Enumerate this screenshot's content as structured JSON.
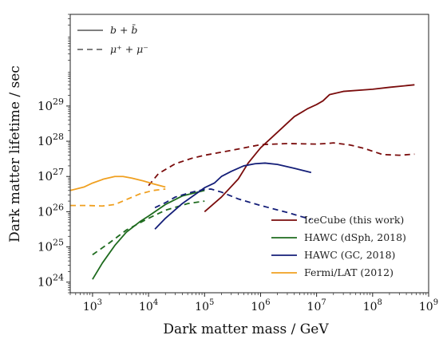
{
  "chart_data": {
    "type": "line",
    "title": "",
    "xlabel": "Dark matter mass / GeV",
    "ylabel": "Dark matter lifetime / sec",
    "x_scale": "log",
    "y_scale": "log",
    "xlim": [
      400,
      1000000000
    ],
    "ylim": [
      500000000000000000000000,
      40000000000000000000000000000000
    ],
    "x_ticks": [
      {
        "value": 1000,
        "base": "10",
        "exp": "3"
      },
      {
        "value": 10000,
        "base": "10",
        "exp": "4"
      },
      {
        "value": 100000,
        "base": "10",
        "exp": "5"
      },
      {
        "value": 1000000,
        "base": "10",
        "exp": "6"
      },
      {
        "value": 10000000,
        "base": "10",
        "exp": "7"
      },
      {
        "value": 100000000,
        "base": "10",
        "exp": "8"
      },
      {
        "value": 1000000000,
        "base": "10",
        "exp": "9"
      }
    ],
    "y_ticks": [
      {
        "value": 1e+24,
        "base": "10",
        "exp": "24"
      },
      {
        "value": 1e+25,
        "base": "10",
        "exp": "25"
      },
      {
        "value": 1e+26,
        "base": "10",
        "exp": "26"
      },
      {
        "value": 1e+27,
        "base": "10",
        "exp": "27"
      },
      {
        "value": 1e+28,
        "base": "10",
        "exp": "28"
      },
      {
        "value": 1e+29,
        "base": "10",
        "exp": "29"
      }
    ],
    "grid": false,
    "legend_placement": "bottom-right",
    "style_legend": [
      {
        "style": "solid",
        "label": "b + b̄"
      },
      {
        "style": "dashed",
        "label": "μ⁺ + μ⁻"
      }
    ],
    "series": [
      {
        "name": "IceCube (this work)",
        "color": "#7a0c0c",
        "style": "solid",
        "x": [
          100000,
          200000,
          400000,
          600000,
          1000000,
          2000000,
          4000000,
          7000000,
          10000000,
          13000000,
          17000000,
          30000000,
          100000000,
          200000000,
          560000000
        ],
        "y": [
          1e+26,
          2.6e+26,
          8.5e+26,
          2.4e+27,
          6.5e+27,
          1.8e+28,
          5e+28,
          8.5e+28,
          1.1e+29,
          1.4e+29,
          2.1e+29,
          2.6e+29,
          3e+29,
          3.4e+29,
          4e+29
        ]
      },
      {
        "name": "IceCube (this work)",
        "color": "#7a0c0c",
        "style": "dashed",
        "x": [
          10000,
          15000,
          30000,
          60000,
          100000,
          300000,
          1000000,
          3000000,
          10000000,
          15000000,
          20000000,
          40000000,
          70000000,
          150000000,
          300000000,
          560000000
        ],
        "y": [
          5.5e+26,
          1.2e+27,
          2.3e+27,
          3.3e+27,
          4e+27,
          5.5e+27,
          8e+27,
          8.6e+27,
          8.3e+27,
          8.6e+27,
          9e+27,
          7.8e+27,
          6.3e+27,
          4.2e+27,
          4e+27,
          4.3e+27
        ]
      },
      {
        "name": "HAWC (dSph, 2018)",
        "color": "#1e6b1e",
        "style": "solid",
        "x": [
          1000,
          1500,
          2500,
          4000,
          7000,
          10000,
          20000,
          40000,
          100000
        ],
        "y": [
          1.2e+24,
          3.5e+24,
          1.1e+25,
          2.6e+25,
          5.2e+25,
          7.5e+25,
          1.6e+26,
          2.8e+26,
          4e+26
        ]
      },
      {
        "name": "HAWC (dSph, 2018)",
        "color": "#1e6b1e",
        "style": "dashed",
        "x": [
          1000,
          2000,
          4000,
          10000,
          20000,
          50000,
          100000
        ],
        "y": [
          6e+24,
          1.3e+25,
          3e+25,
          6.5e+25,
          1.1e+26,
          1.7e+26,
          2e+26
        ]
      },
      {
        "name": "HAWC (GC, 2018)",
        "color": "#141e78",
        "style": "solid",
        "x": [
          13000,
          20000,
          40000,
          70000,
          100000,
          150000,
          200000,
          300000,
          500000,
          800000,
          1200000,
          2000000,
          4000000,
          8000000
        ],
        "y": [
          3.2e+25,
          6.5e+25,
          1.7e+26,
          3.2e+26,
          4.8e+26,
          6.5e+26,
          1e+27,
          1.4e+27,
          2e+27,
          2.3e+27,
          2.4e+27,
          2.2e+27,
          1.7e+27,
          1.3e+27
        ]
      },
      {
        "name": "HAWC (GC, 2018)",
        "color": "#141e78",
        "style": "dashed",
        "x": [
          13000,
          20000,
          30000,
          60000,
          100000,
          130000,
          200000,
          400000,
          1000000,
          3000000,
          8000000
        ],
        "y": [
          1.3e+26,
          1.8e+26,
          2.6e+26,
          3.6e+26,
          4.3e+26,
          4.4e+26,
          3.6e+26,
          2.3e+26,
          1.5e+26,
          9.5e+25,
          6e+25
        ]
      },
      {
        "name": "Fermi/LAT (2012)",
        "color": "#f0a020",
        "style": "solid",
        "x": [
          400,
          700,
          1000,
          1600,
          2500,
          3500,
          5000,
          8000,
          12000,
          20000
        ],
        "y": [
          4e+26,
          5e+26,
          6.5e+26,
          8.5e+26,
          1e+27,
          1e+27,
          9e+26,
          7.5e+26,
          6.2e+26,
          5e+26
        ]
      },
      {
        "name": "Fermi/LAT (2012)",
        "color": "#f0a020",
        "style": "dashed",
        "x": [
          400,
          800,
          1500,
          2500,
          4000,
          7000,
          12000,
          20000
        ],
        "y": [
          1.5e+26,
          1.5e+26,
          1.45e+26,
          1.6e+26,
          2.2e+26,
          3.2e+26,
          4e+26,
          4.4e+26
        ]
      }
    ]
  }
}
